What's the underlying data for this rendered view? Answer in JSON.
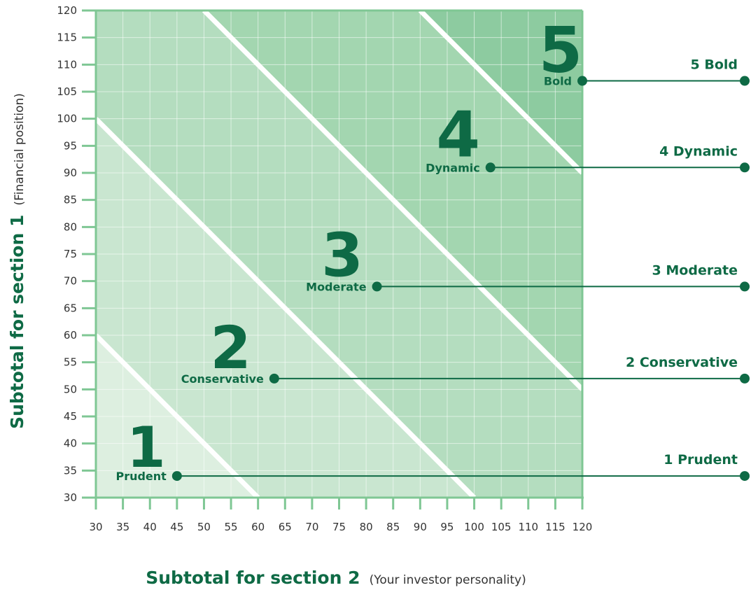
{
  "chart_data": {
    "type": "area",
    "xlabel": "Subtotal for section 2",
    "xlabel_note": "(Your investor personality)",
    "ylabel": "Subtotal for section 1",
    "ylabel_note": "(Financial position)",
    "xlim": [
      30,
      120
    ],
    "ylim": [
      30,
      120
    ],
    "x_ticks": [
      30,
      35,
      40,
      45,
      50,
      55,
      60,
      65,
      70,
      75,
      80,
      85,
      90,
      95,
      100,
      105,
      110,
      115,
      120
    ],
    "y_ticks": [
      30,
      35,
      40,
      45,
      50,
      55,
      60,
      65,
      70,
      75,
      80,
      85,
      90,
      95,
      100,
      105,
      110,
      115,
      120
    ],
    "grid": true,
    "boundaries": [
      {
        "x1": 30,
        "y1": 60,
        "x2": 60,
        "y2": 30
      },
      {
        "x1": 30,
        "y1": 100,
        "x2": 100,
        "y2": 30
      },
      {
        "x1": 50,
        "y1": 120,
        "x2": 120,
        "y2": 50
      },
      {
        "x1": 90,
        "y1": 120,
        "x2": 120,
        "y2": 90
      }
    ],
    "zones": [
      {
        "number": "1",
        "name": "Prudent",
        "legend": "1 Prudent",
        "marker": [
          45,
          34
        ],
        "color": "#ddefe0"
      },
      {
        "number": "2",
        "name": "Conservative",
        "legend": "2 Conservative",
        "marker": [
          63,
          52
        ],
        "color": "#c9e6d0"
      },
      {
        "number": "3",
        "name": "Moderate",
        "legend": "3 Moderate",
        "marker": [
          82,
          69
        ],
        "color": "#b4ddbf"
      },
      {
        "number": "4",
        "name": "Dynamic",
        "legend": "4 Dynamic",
        "marker": [
          103,
          91
        ],
        "color": "#a3d6b0"
      },
      {
        "number": "5",
        "name": "Bold",
        "legend": "5 Bold",
        "marker": [
          120,
          107
        ],
        "color": "#8dcba0"
      }
    ],
    "colors": {
      "accent": "#0e6a45",
      "axis": "#7fc794",
      "divider": "#ffffff"
    }
  }
}
